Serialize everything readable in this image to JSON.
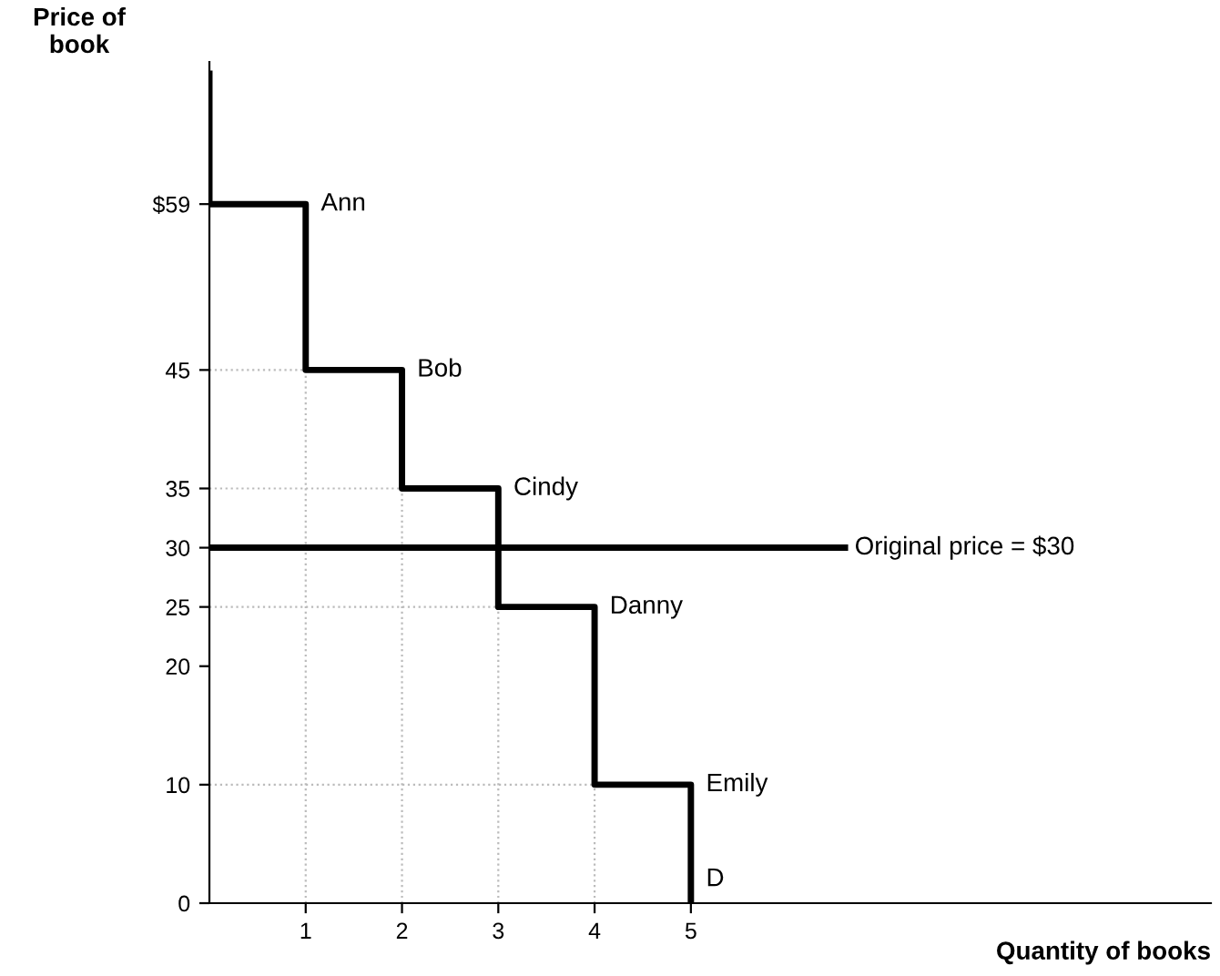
{
  "chart_data": {
    "type": "line",
    "xlabel": "Quantity of books",
    "ylabel": "Price of\nbook",
    "series": [
      {
        "color": "#000000",
        "x": [
          0,
          0,
          1,
          1,
          2,
          2,
          3,
          3,
          4,
          4,
          5,
          5
        ],
        "values": [
          70,
          59,
          59,
          45,
          45,
          35,
          35,
          25,
          25,
          10,
          10,
          0
        ]
      },
      {
        "name": "Original price = $30",
        "color": "#000000",
        "x": [
          0,
          6.6
        ],
        "values": [
          30,
          30
        ]
      }
    ],
    "annotations": [
      {
        "text": "Ann",
        "x": 1,
        "y": 59
      },
      {
        "text": "Bob",
        "x": 2,
        "y": 45
      },
      {
        "text": "Cindy",
        "x": 3,
        "y": 35
      },
      {
        "text": "Danny",
        "x": 4,
        "y": 25
      },
      {
        "text": "Emily",
        "x": 5,
        "y": 10
      },
      {
        "text": "D",
        "x": 5,
        "y": 2
      }
    ],
    "xlim": [
      0,
      10.4
    ],
    "ylim": [
      0,
      71
    ],
    "xticks": [
      1,
      2,
      3,
      4,
      5
    ],
    "yticks": [
      0,
      10,
      20,
      25,
      30,
      35,
      45,
      {
        "value": 59,
        "label": "$59"
      }
    ],
    "grid": true,
    "marker": "none",
    "line_style": "solid"
  }
}
